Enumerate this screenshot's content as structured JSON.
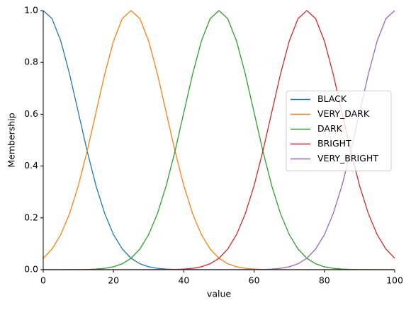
{
  "chart_data": {
    "type": "line",
    "x_label": "value",
    "y_label": "Membership",
    "x": [
      0,
      2.5,
      5,
      7.5,
      10,
      12.5,
      15,
      17.5,
      20,
      22.5,
      25,
      27.5,
      30,
      32.5,
      35,
      37.5,
      40,
      42.5,
      45,
      47.5,
      50,
      52.5,
      55,
      57.5,
      60,
      62.5,
      65,
      67.5,
      70,
      72.5,
      75,
      77.5,
      80,
      82.5,
      85,
      87.5,
      90,
      92.5,
      95,
      97.5,
      100
    ],
    "series": [
      {
        "name": "BLACK",
        "color": "#1f77b4",
        "values": [
          1,
          0.9692,
          0.8825,
          0.7548,
          0.6065,
          0.4578,
          0.3247,
          0.2163,
          0.1353,
          0.0796,
          0.0439,
          0.0228,
          0.0111,
          0.0051,
          0.0022,
          0.0009,
          0.0003,
          0.0001,
          0,
          0,
          0,
          0,
          0,
          0,
          0,
          0,
          0,
          0,
          0,
          0,
          0,
          0,
          0,
          0,
          0,
          0,
          0,
          0,
          0,
          0,
          0
        ]
      },
      {
        "name": "VERY_DARK",
        "color": "#ff7f0e",
        "values": [
          0.0439,
          0.0796,
          0.1353,
          0.2163,
          0.3247,
          0.4578,
          0.6065,
          0.7548,
          0.8825,
          0.9692,
          1,
          0.9692,
          0.8825,
          0.7548,
          0.6065,
          0.4578,
          0.3247,
          0.2163,
          0.1353,
          0.0796,
          0.0439,
          0.0228,
          0.0111,
          0.0051,
          0.0022,
          0.0009,
          0.0003,
          0.0001,
          0,
          0,
          0,
          0,
          0,
          0,
          0,
          0,
          0,
          0,
          0,
          0,
          0
        ]
      },
      {
        "name": "DARK",
        "color": "#2ca02c",
        "values": [
          0,
          0,
          0,
          0.0001,
          0.0003,
          0.0009,
          0.0022,
          0.0051,
          0.0111,
          0.0228,
          0.0439,
          0.0796,
          0.1353,
          0.2163,
          0.3247,
          0.4578,
          0.6065,
          0.7548,
          0.8825,
          0.9692,
          1,
          0.9692,
          0.8825,
          0.7548,
          0.6065,
          0.4578,
          0.3247,
          0.2163,
          0.1353,
          0.0796,
          0.0439,
          0.0228,
          0.0111,
          0.0051,
          0.0022,
          0.0009,
          0.0003,
          0.0001,
          0,
          0,
          0
        ]
      },
      {
        "name": "BRIGHT",
        "color": "#d62728",
        "values": [
          0,
          0,
          0,
          0,
          0,
          0,
          0,
          0,
          0,
          0,
          0,
          0,
          0,
          0.0001,
          0.0003,
          0.0009,
          0.0022,
          0.0051,
          0.0111,
          0.0228,
          0.0439,
          0.0796,
          0.1353,
          0.2163,
          0.3247,
          0.4578,
          0.6065,
          0.7548,
          0.8825,
          0.9692,
          1,
          0.9692,
          0.8825,
          0.7548,
          0.6065,
          0.4578,
          0.3247,
          0.2163,
          0.1353,
          0.0796,
          0.0439
        ]
      },
      {
        "name": "VERY_BRIGHT",
        "color": "#9467bd",
        "values": [
          0,
          0,
          0,
          0,
          0,
          0,
          0,
          0,
          0,
          0,
          0,
          0,
          0,
          0,
          0,
          0,
          0,
          0,
          0,
          0,
          0,
          0,
          0,
          0.0001,
          0.0003,
          0.0009,
          0.0022,
          0.0051,
          0.0111,
          0.0228,
          0.0439,
          0.0796,
          0.1353,
          0.2163,
          0.3247,
          0.4578,
          0.6065,
          0.7548,
          0.8825,
          0.9692,
          1
        ]
      }
    ],
    "xlim": [
      0,
      100
    ],
    "xticks": [
      0,
      20,
      40,
      60,
      80,
      100
    ],
    "ylim": [
      0,
      1
    ],
    "yticks": [
      {
        "value": 0,
        "label": "0.0"
      },
      {
        "value": 0.2,
        "label": "0.2"
      },
      {
        "value": 0.4,
        "label": "0.4"
      },
      {
        "value": 0.6,
        "label": "0.6"
      },
      {
        "value": 0.8,
        "label": "0.8"
      },
      {
        "value": 1,
        "label": "1.0"
      }
    ],
    "legend": "center right",
    "grid": false
  }
}
